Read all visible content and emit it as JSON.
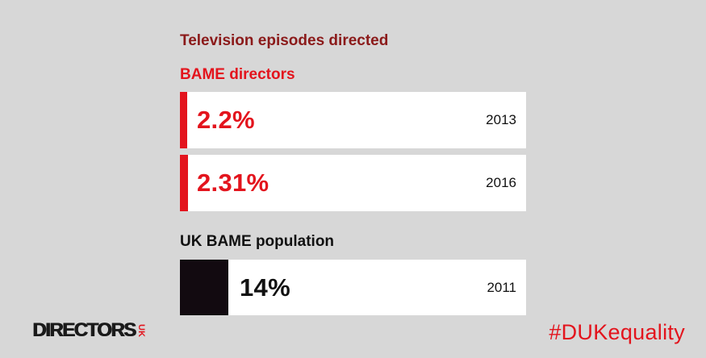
{
  "chart_data": {
    "type": "bar",
    "title": "Television episodes directed",
    "groups": [
      {
        "name": "BAME directors",
        "bars": [
          {
            "year": "2013",
            "value": 2.2,
            "label": "2.2%"
          },
          {
            "year": "2016",
            "value": 2.31,
            "label": "2.31%"
          }
        ]
      },
      {
        "name": "UK BAME population",
        "bars": [
          {
            "year": "2011",
            "value": 14,
            "label": "14%"
          }
        ]
      }
    ],
    "xlim": [
      0,
      100
    ]
  },
  "branding": {
    "logo_word": "DIRECTORS",
    "logo_uk": "UK",
    "hashtag": "#DUKequality"
  },
  "colors": {
    "background": "#d7d7d7",
    "accent_red": "#e3141d",
    "title_dark_red": "#8b1a1a",
    "dark": "#120a10",
    "bar_background": "#ffffff"
  }
}
